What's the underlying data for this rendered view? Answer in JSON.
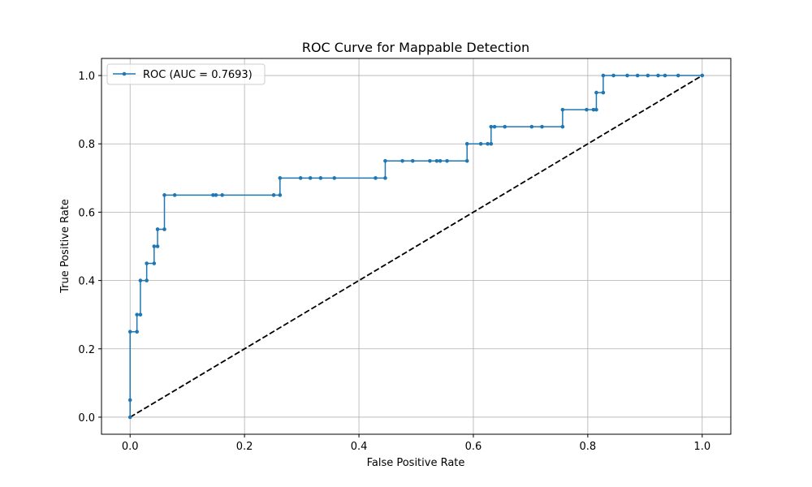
{
  "chart_data": {
    "type": "line",
    "title": "ROC Curve for Mappable Detection",
    "xlabel": "False Positive Rate",
    "ylabel": "True Positive Rate",
    "xlim": [
      -0.05,
      1.05
    ],
    "ylim": [
      -0.05,
      1.05
    ],
    "xticks": [
      0.0,
      0.2,
      0.4,
      0.6,
      0.8,
      1.0
    ],
    "yticks": [
      0.0,
      0.2,
      0.4,
      0.6,
      0.8,
      1.0
    ],
    "xtick_labels": [
      "0.0",
      "0.2",
      "0.4",
      "0.6",
      "0.8",
      "1.0"
    ],
    "ytick_labels": [
      "0.0",
      "0.2",
      "0.4",
      "0.6",
      "0.8",
      "1.0"
    ],
    "grid": true,
    "legend_position": "top-left",
    "series": [
      {
        "name": "ROC (AUC = 0.7693)",
        "color": "#1f77b4",
        "marker": "dot",
        "x": [
          0.0,
          0.0,
          0.0,
          0.012,
          0.012,
          0.018,
          0.018,
          0.029,
          0.029,
          0.042,
          0.042,
          0.048,
          0.048,
          0.06,
          0.06,
          0.078,
          0.145,
          0.15,
          0.161,
          0.251,
          0.262,
          0.262,
          0.298,
          0.315,
          0.333,
          0.357,
          0.429,
          0.446,
          0.446,
          0.476,
          0.494,
          0.524,
          0.536,
          0.542,
          0.554,
          0.589,
          0.589,
          0.613,
          0.625,
          0.631,
          0.631,
          0.637,
          0.655,
          0.702,
          0.72,
          0.756,
          0.756,
          0.798,
          0.81,
          0.815,
          0.815,
          0.827,
          0.827,
          0.845,
          0.869,
          0.887,
          0.905,
          0.923,
          0.935,
          0.958,
          1.0
        ],
        "y": [
          0.0,
          0.05,
          0.25,
          0.25,
          0.3,
          0.3,
          0.4,
          0.4,
          0.45,
          0.45,
          0.5,
          0.5,
          0.55,
          0.55,
          0.65,
          0.65,
          0.65,
          0.65,
          0.65,
          0.65,
          0.65,
          0.7,
          0.7,
          0.7,
          0.7,
          0.7,
          0.7,
          0.7,
          0.75,
          0.75,
          0.75,
          0.75,
          0.75,
          0.75,
          0.75,
          0.75,
          0.8,
          0.8,
          0.8,
          0.8,
          0.85,
          0.85,
          0.85,
          0.85,
          0.85,
          0.85,
          0.9,
          0.9,
          0.9,
          0.9,
          0.95,
          0.95,
          1.0,
          1.0,
          1.0,
          1.0,
          1.0,
          1.0,
          1.0,
          1.0,
          1.0
        ]
      },
      {
        "color": "#000000",
        "style": "dashed",
        "x": [
          0.0,
          1.0
        ],
        "y": [
          0.0,
          1.0
        ]
      }
    ]
  }
}
